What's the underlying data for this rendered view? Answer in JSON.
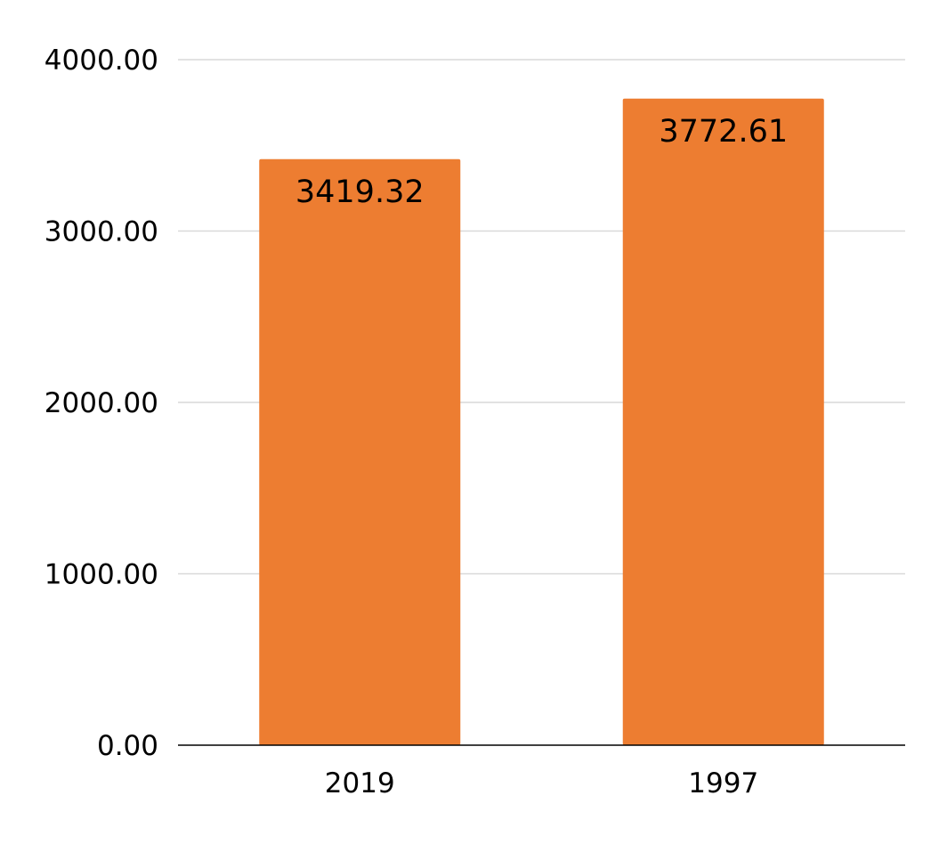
{
  "chart_data": {
    "type": "bar",
    "title": "",
    "xlabel": "",
    "ylabel": "",
    "categories": [
      "2019",
      "1997"
    ],
    "values": [
      3419.32,
      3772.61
    ],
    "value_labels": [
      "3419.32",
      "3772.61"
    ],
    "ylim": [
      0,
      4000
    ],
    "yticks": [
      "0.00",
      "1000.00",
      "2000.00",
      "3000.00",
      "4000.00"
    ],
    "grid": true,
    "legend": "none",
    "colors": {
      "bar": "#ED7D31",
      "grid": "#D9D9D9",
      "axis": "#000000",
      "text": "#000000"
    }
  }
}
